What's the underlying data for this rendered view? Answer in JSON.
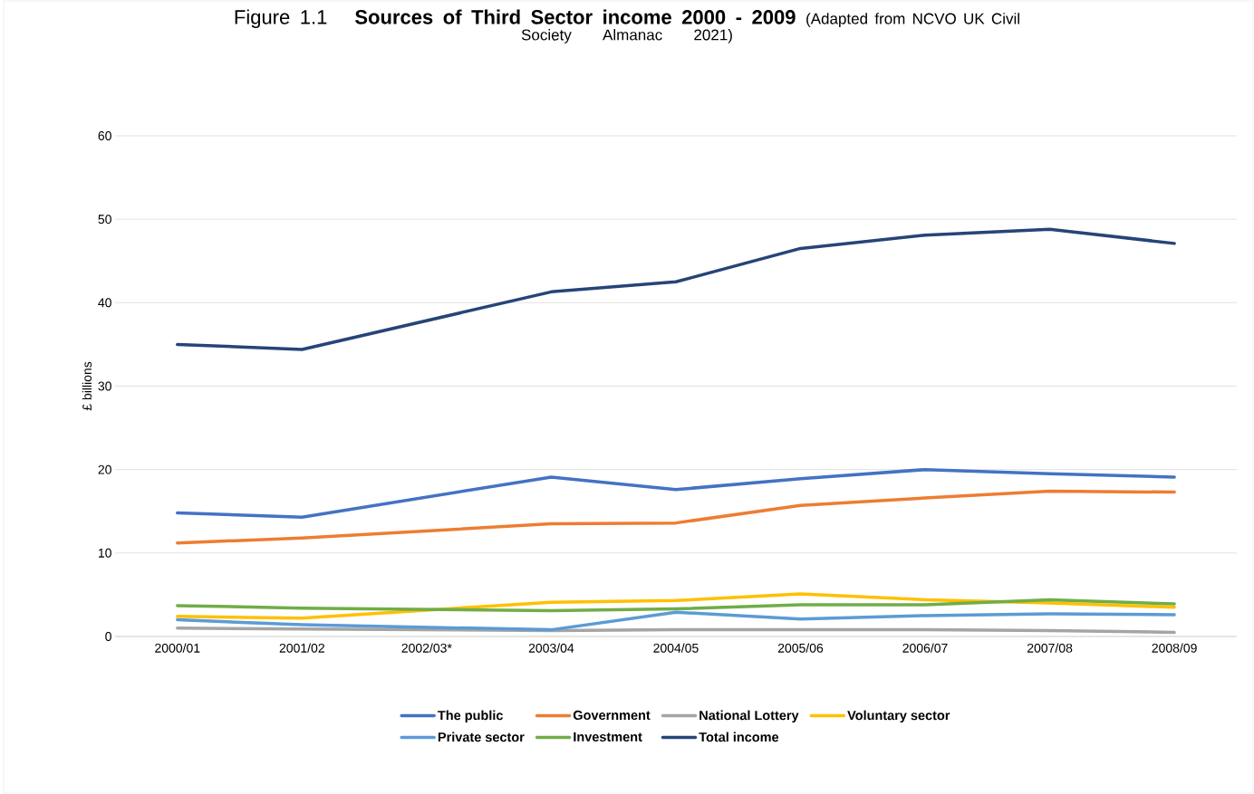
{
  "chart_data": {
    "type": "line",
    "title": "Sources of Third Sector income 2000 - 2009",
    "annotations": [
      "Figure 1.1"
    ],
    "subtitle": "(Adapted from NCVO UK Civil Society Almanac 2021)",
    "ylabel": "£ billions",
    "categories": [
      "2000/01",
      "2001/02",
      "2002/03*",
      "2003/04",
      "2004/05",
      "2005/06",
      "2006/07",
      "2007/08",
      "2008/09"
    ],
    "series": [
      {
        "name": "The public",
        "color": "#4472c4",
        "values": [
          14.8,
          14.3,
          null,
          19.1,
          17.6,
          18.9,
          20.0,
          19.5,
          19.1
        ]
      },
      {
        "name": "Government",
        "color": "#ed7d31",
        "values": [
          11.2,
          11.8,
          null,
          13.5,
          13.6,
          15.7,
          16.6,
          17.4,
          17.3
        ]
      },
      {
        "name": "National Lottery",
        "color": "#a5a5a5",
        "values": [
          1.0,
          0.9,
          null,
          0.7,
          0.8,
          0.8,
          0.8,
          0.7,
          0.5
        ]
      },
      {
        "name": "Voluntary sector",
        "color": "#ffc000",
        "values": [
          2.4,
          2.2,
          null,
          4.1,
          4.3,
          5.1,
          4.4,
          4.0,
          3.5
        ]
      },
      {
        "name": "Private sector",
        "color": "#5b9bd5",
        "values": [
          2.0,
          1.4,
          null,
          0.8,
          2.9,
          2.1,
          2.5,
          2.7,
          2.6
        ]
      },
      {
        "name": "Investment",
        "color": "#70ad47",
        "values": [
          3.7,
          3.4,
          null,
          3.1,
          3.3,
          3.8,
          3.8,
          4.4,
          3.9
        ]
      },
      {
        "name": "Total income",
        "color": "#264478",
        "values": [
          35.0,
          34.4,
          null,
          41.3,
          42.5,
          46.5,
          48.1,
          48.8,
          47.1
        ]
      }
    ],
    "ylim": [
      0,
      60
    ],
    "yticks": [
      0,
      10,
      20,
      30,
      40,
      50,
      60
    ],
    "grid": "y",
    "legend": "bottom",
    "marker": "none",
    "line_style": "solid"
  }
}
